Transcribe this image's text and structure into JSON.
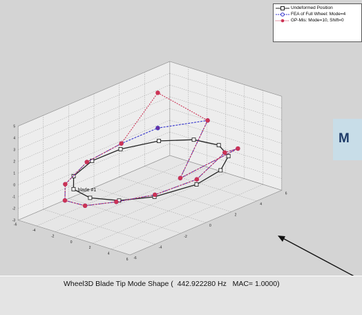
{
  "chart_data": {
    "type": "line",
    "title": "",
    "xlabel": "",
    "ylabel": "",
    "zlabel": "",
    "xlim": [
      -6,
      6
    ],
    "ylim": [
      -6,
      6
    ],
    "zlim": [
      -3,
      5
    ],
    "grid": true,
    "legend_placement": "top-right",
    "x_ticks": [
      "6",
      "4",
      "2",
      "0",
      "-2",
      "-4",
      "-6"
    ],
    "y_ticks": [
      "-6",
      "-4",
      "-2",
      "0",
      "2",
      "4",
      "6"
    ],
    "z_ticks": [
      "5",
      "4",
      "3",
      "2",
      "1",
      "0",
      "-1",
      "-2",
      "-3"
    ],
    "series": [
      {
        "name": "Undeformed Position",
        "color": "#222222",
        "marker": "square",
        "x": [
          5.0,
          4.43,
          2.86,
          0.66,
          -1.68,
          -3.66,
          -4.84,
          -4.91,
          -3.83,
          -1.94,
          0.35,
          2.54,
          4.19
        ],
        "y": [
          0.0,
          2.32,
          4.1,
          4.96,
          4.71,
          3.41,
          1.25,
          -0.95,
          -3.21,
          -4.61,
          -4.99,
          -4.31,
          -2.73
        ],
        "z": [
          0,
          0,
          0,
          0,
          0,
          0,
          0,
          0,
          0,
          0,
          0,
          0,
          0
        ]
      },
      {
        "name": "FEA of Full Wheel: Mode=4",
        "color": "#3333cc",
        "marker": "circle",
        "x": [
          5.3,
          4.5,
          3.2,
          0.0,
          -1.4,
          -3.9,
          -5.1,
          -5.4,
          -4.2,
          -2.2,
          0.5,
          2.9,
          4.6
        ],
        "y": [
          -0.2,
          2.6,
          4.6,
          2.4,
          5.6,
          3.5,
          1.5,
          -1.0,
          -3.6,
          -5.1,
          -5.5,
          -4.8,
          -3.0
        ],
        "z": [
          0.6,
          1.4,
          0.5,
          -1.8,
          1.3,
          1.0,
          0.3,
          -0.2,
          -0.6,
          -0.8,
          -0.4,
          0.2,
          0.4
        ]
      },
      {
        "name": "GP-Mis: Mode=10, Shift=0",
        "color": "#cc3355",
        "marker": "circle",
        "x": [
          5.3,
          4.5,
          3.2,
          0.0,
          -1.4,
          -3.9,
          -5.1,
          -5.4,
          -4.2,
          -2.2,
          0.5,
          2.9,
          4.6
        ],
        "y": [
          -0.2,
          2.6,
          4.6,
          2.4,
          5.6,
          3.5,
          1.5,
          -1.0,
          -3.6,
          -5.1,
          -5.5,
          -4.8,
          -3.0
        ],
        "z": [
          0.6,
          1.4,
          0.5,
          -1.8,
          1.3,
          4.0,
          0.3,
          -0.2,
          -0.6,
          -0.8,
          -0.4,
          0.2,
          0.4
        ]
      }
    ],
    "annotations": [
      "blade #1"
    ]
  },
  "side_label": "M",
  "caption": "Wheel3D Blade Tip Mode Shape (  442.922280 Hz   MAC= 1.0000)"
}
